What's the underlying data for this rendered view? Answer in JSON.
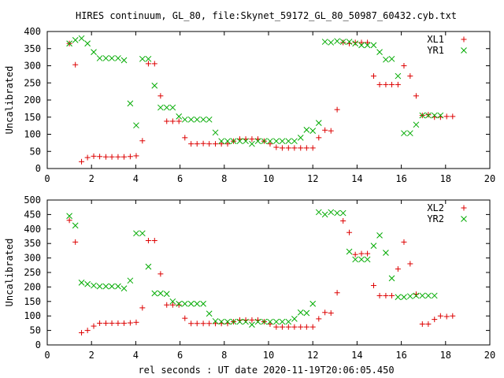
{
  "figure": {
    "title": "HIRES continuum, GL_80, file:Skynet_59172_GL_80_50987_60432.cyb.txt",
    "xlabel": "rel seconds : UT date 2020-11-19T20:06:05.450"
  },
  "chart_data": [
    {
      "type": "scatter",
      "ylabel": "Uncalibrated",
      "xlim": [
        0,
        20
      ],
      "ylim": [
        0,
        400
      ],
      "xticks": [
        0,
        2,
        4,
        6,
        8,
        10,
        12,
        14,
        16,
        18,
        20
      ],
      "yticks": [
        0,
        50,
        100,
        150,
        200,
        250,
        300,
        350,
        400
      ],
      "legend": "top-right",
      "grid": false,
      "series": [
        {
          "name": "XL1",
          "marker": "plus",
          "color": "#dd0000",
          "points": [
            [
              1.0,
              365
            ],
            [
              1.27,
              303
            ],
            [
              1.55,
              20
            ],
            [
              1.82,
              32
            ],
            [
              2.1,
              36
            ],
            [
              2.37,
              35
            ],
            [
              2.65,
              34
            ],
            [
              2.92,
              34
            ],
            [
              3.2,
              34
            ],
            [
              3.47,
              34
            ],
            [
              3.75,
              35
            ],
            [
              4.02,
              37
            ],
            [
              4.3,
              81
            ],
            [
              4.57,
              306
            ],
            [
              4.85,
              306
            ],
            [
              5.12,
              212
            ],
            [
              5.4,
              138
            ],
            [
              5.67,
              138
            ],
            [
              5.95,
              138
            ],
            [
              6.22,
              90
            ],
            [
              6.5,
              72
            ],
            [
              6.77,
              72
            ],
            [
              7.05,
              73
            ],
            [
              7.32,
              72
            ],
            [
              7.6,
              72
            ],
            [
              7.87,
              72
            ],
            [
              8.15,
              72
            ],
            [
              8.42,
              80
            ],
            [
              8.7,
              86
            ],
            [
              8.97,
              86
            ],
            [
              9.25,
              86
            ],
            [
              9.52,
              86
            ],
            [
              9.8,
              80
            ],
            [
              10.07,
              72
            ],
            [
              10.35,
              62
            ],
            [
              10.62,
              60
            ],
            [
              10.9,
              60
            ],
            [
              11.17,
              60
            ],
            [
              11.45,
              60
            ],
            [
              11.72,
              60
            ],
            [
              12.0,
              60
            ],
            [
              12.27,
              90
            ],
            [
              12.55,
              112
            ],
            [
              12.82,
              110
            ],
            [
              13.1,
              172
            ],
            [
              13.37,
              368
            ],
            [
              13.65,
              365
            ],
            [
              13.92,
              368
            ],
            [
              14.2,
              368
            ],
            [
              14.47,
              368
            ],
            [
              14.75,
              270
            ],
            [
              15.02,
              245
            ],
            [
              15.3,
              245
            ],
            [
              15.57,
              245
            ],
            [
              15.85,
              245
            ],
            [
              16.12,
              300
            ],
            [
              16.4,
              270
            ],
            [
              16.67,
              212
            ],
            [
              16.95,
              155
            ],
            [
              17.22,
              157
            ],
            [
              17.5,
              150
            ],
            [
              17.77,
              150
            ],
            [
              18.05,
              152
            ],
            [
              18.32,
              152
            ]
          ]
        },
        {
          "name": "YR1",
          "marker": "cross",
          "color": "#00aa00",
          "points": [
            [
              1.0,
              365
            ],
            [
              1.27,
              375
            ],
            [
              1.55,
              380
            ],
            [
              1.82,
              365
            ],
            [
              2.1,
              340
            ],
            [
              2.37,
              322
            ],
            [
              2.65,
              322
            ],
            [
              2.92,
              322
            ],
            [
              3.2,
              322
            ],
            [
              3.47,
              316
            ],
            [
              3.75,
              190
            ],
            [
              4.02,
              126
            ],
            [
              4.3,
              320
            ],
            [
              4.57,
              320
            ],
            [
              4.85,
              242
            ],
            [
              5.12,
              178
            ],
            [
              5.4,
              178
            ],
            [
              5.67,
              178
            ],
            [
              5.95,
              152
            ],
            [
              6.22,
              143
            ],
            [
              6.5,
              143
            ],
            [
              6.77,
              143
            ],
            [
              7.05,
              143
            ],
            [
              7.32,
              143
            ],
            [
              7.6,
              105
            ],
            [
              7.87,
              80
            ],
            [
              8.15,
              80
            ],
            [
              8.42,
              80
            ],
            [
              8.7,
              80
            ],
            [
              8.97,
              80
            ],
            [
              9.25,
              72
            ],
            [
              9.52,
              80
            ],
            [
              9.8,
              80
            ],
            [
              10.07,
              80
            ],
            [
              10.35,
              80
            ],
            [
              10.62,
              80
            ],
            [
              10.9,
              80
            ],
            [
              11.17,
              80
            ],
            [
              11.45,
              90
            ],
            [
              11.72,
              113
            ],
            [
              12.0,
              110
            ],
            [
              12.27,
              133
            ],
            [
              12.55,
              370
            ],
            [
              12.82,
              368
            ],
            [
              13.1,
              372
            ],
            [
              13.37,
              370
            ],
            [
              13.65,
              370
            ],
            [
              13.92,
              365
            ],
            [
              14.2,
              360
            ],
            [
              14.47,
              360
            ],
            [
              14.75,
              360
            ],
            [
              15.02,
              340
            ],
            [
              15.3,
              318
            ],
            [
              15.57,
              320
            ],
            [
              15.85,
              270
            ],
            [
              16.12,
              103
            ],
            [
              16.4,
              103
            ],
            [
              16.67,
              128
            ],
            [
              16.95,
              155
            ],
            [
              17.22,
              155
            ],
            [
              17.5,
              155
            ],
            [
              17.77,
              155
            ]
          ]
        }
      ]
    },
    {
      "type": "scatter",
      "ylabel": "Uncalibrated",
      "xlim": [
        0,
        20
      ],
      "ylim": [
        0,
        500
      ],
      "xticks": [
        0,
        2,
        4,
        6,
        8,
        10,
        12,
        14,
        16,
        18,
        20
      ],
      "yticks": [
        0,
        50,
        100,
        150,
        200,
        250,
        300,
        350,
        400,
        450,
        500
      ],
      "legend": "top-right",
      "grid": false,
      "series": [
        {
          "name": "XL2",
          "marker": "plus",
          "color": "#dd0000",
          "points": [
            [
              1.0,
              430
            ],
            [
              1.27,
              355
            ],
            [
              1.55,
              42
            ],
            [
              1.82,
              50
            ],
            [
              2.1,
              65
            ],
            [
              2.37,
              75
            ],
            [
              2.65,
              75
            ],
            [
              2.92,
              75
            ],
            [
              3.2,
              75
            ],
            [
              3.47,
              75
            ],
            [
              3.75,
              76
            ],
            [
              4.02,
              78
            ],
            [
              4.3,
              128
            ],
            [
              4.57,
              360
            ],
            [
              4.85,
              360
            ],
            [
              5.12,
              245
            ],
            [
              5.4,
              138
            ],
            [
              5.67,
              138
            ],
            [
              5.95,
              138
            ],
            [
              6.22,
              92
            ],
            [
              6.5,
              74
            ],
            [
              6.77,
              74
            ],
            [
              7.05,
              74
            ],
            [
              7.32,
              74
            ],
            [
              7.6,
              74
            ],
            [
              7.87,
              74
            ],
            [
              8.15,
              74
            ],
            [
              8.42,
              80
            ],
            [
              8.7,
              86
            ],
            [
              8.97,
              86
            ],
            [
              9.25,
              86
            ],
            [
              9.52,
              86
            ],
            [
              9.8,
              80
            ],
            [
              10.07,
              72
            ],
            [
              10.35,
              62
            ],
            [
              10.62,
              62
            ],
            [
              10.9,
              62
            ],
            [
              11.17,
              62
            ],
            [
              11.45,
              62
            ],
            [
              11.72,
              62
            ],
            [
              12.0,
              62
            ],
            [
              12.27,
              90
            ],
            [
              12.55,
              112
            ],
            [
              12.82,
              110
            ],
            [
              13.1,
              180
            ],
            [
              13.37,
              428
            ],
            [
              13.65,
              388
            ],
            [
              13.92,
              312
            ],
            [
              14.2,
              315
            ],
            [
              14.47,
              315
            ],
            [
              14.75,
              205
            ],
            [
              15.02,
              170
            ],
            [
              15.3,
              170
            ],
            [
              15.57,
              170
            ],
            [
              15.85,
              262
            ],
            [
              16.12,
              355
            ],
            [
              16.4,
              280
            ],
            [
              16.67,
              175
            ],
            [
              16.95,
              72
            ],
            [
              17.22,
              72
            ],
            [
              17.5,
              88
            ],
            [
              17.77,
              100
            ],
            [
              18.05,
              98
            ],
            [
              18.32,
              100
            ]
          ]
        },
        {
          "name": "YR2",
          "marker": "cross",
          "color": "#00aa00",
          "points": [
            [
              1.0,
              445
            ],
            [
              1.27,
              412
            ],
            [
              1.55,
              215
            ],
            [
              1.82,
              210
            ],
            [
              2.1,
              205
            ],
            [
              2.37,
              202
            ],
            [
              2.65,
              202
            ],
            [
              2.92,
              202
            ],
            [
              3.2,
              202
            ],
            [
              3.47,
              195
            ],
            [
              3.75,
              222
            ],
            [
              4.02,
              385
            ],
            [
              4.3,
              385
            ],
            [
              4.57,
              270
            ],
            [
              4.85,
              178
            ],
            [
              5.12,
              178
            ],
            [
              5.4,
              176
            ],
            [
              5.67,
              150
            ],
            [
              5.95,
              142
            ],
            [
              6.22,
              142
            ],
            [
              6.5,
              142
            ],
            [
              6.77,
              142
            ],
            [
              7.05,
              142
            ],
            [
              7.32,
              108
            ],
            [
              7.6,
              82
            ],
            [
              7.87,
              80
            ],
            [
              8.15,
              80
            ],
            [
              8.42,
              80
            ],
            [
              8.7,
              80
            ],
            [
              8.97,
              80
            ],
            [
              9.25,
              70
            ],
            [
              9.52,
              80
            ],
            [
              9.8,
              80
            ],
            [
              10.07,
              80
            ],
            [
              10.35,
              80
            ],
            [
              10.62,
              80
            ],
            [
              10.9,
              80
            ],
            [
              11.17,
              90
            ],
            [
              11.45,
              112
            ],
            [
              11.72,
              110
            ],
            [
              12.0,
              142
            ],
            [
              12.27,
              458
            ],
            [
              12.55,
              450
            ],
            [
              12.82,
              458
            ],
            [
              13.1,
              455
            ],
            [
              13.37,
              455
            ],
            [
              13.65,
              322
            ],
            [
              13.92,
              295
            ],
            [
              14.2,
              295
            ],
            [
              14.47,
              295
            ],
            [
              14.75,
              342
            ],
            [
              15.02,
              378
            ],
            [
              15.3,
              318
            ],
            [
              15.57,
              230
            ],
            [
              15.85,
              165
            ],
            [
              16.12,
              165
            ],
            [
              16.4,
              168
            ],
            [
              16.67,
              170
            ],
            [
              16.95,
              170
            ],
            [
              17.22,
              170
            ],
            [
              17.5,
              170
            ]
          ]
        }
      ]
    }
  ]
}
